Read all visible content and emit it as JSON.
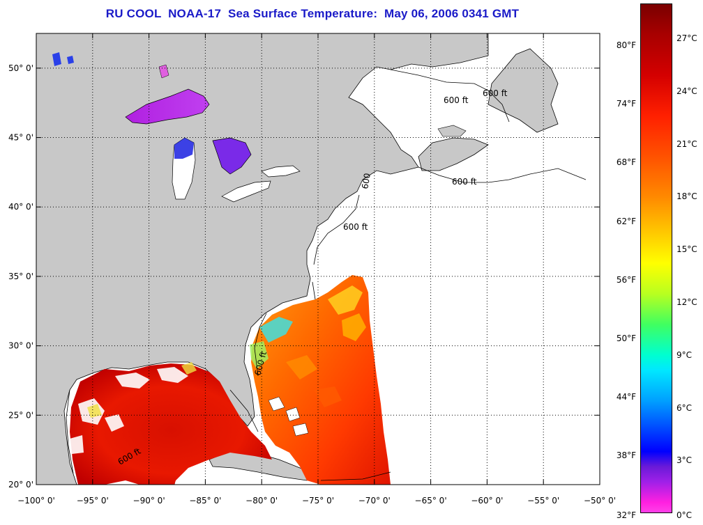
{
  "title": "RU COOL  NOAA-17  Sea Surface Temperature:  May 06, 2006 0341 GMT",
  "map": {
    "lon_range": [
      -100,
      -50
    ],
    "lat_range": [
      20,
      52.5
    ],
    "lon_ticks": [
      "−100° 0'",
      "−95° 0'",
      "−90° 0'",
      "−85° 0'",
      "−80° 0'",
      "−75° 0'",
      "−70° 0'",
      "−65° 0'",
      "−60° 0'",
      "−55° 0'",
      "−50° 0'"
    ],
    "lat_ticks": [
      "20° 0'",
      "25° 0'",
      "30° 0'",
      "35° 0'",
      "40° 0'",
      "45° 0'",
      "50° 0'"
    ],
    "contour_labels": [
      "600 ft",
      "600 ft",
      "600 ft",
      "600",
      "600 ft",
      "600 ft",
      "600 ft"
    ],
    "colors": {
      "land": "#c8c8c8",
      "ocean": "#ffffff",
      "grid": "#000000"
    }
  },
  "colorbar": {
    "fahrenheit": [
      "80°F",
      "74°F",
      "68°F",
      "62°F",
      "56°F",
      "50°F",
      "44°F",
      "38°F",
      "32°F"
    ],
    "celsius": [
      "27°C",
      "24°C",
      "21°C",
      "18°C",
      "15°C",
      "12°C",
      "9°C",
      "6°C",
      "3°C",
      "0°C"
    ]
  }
}
